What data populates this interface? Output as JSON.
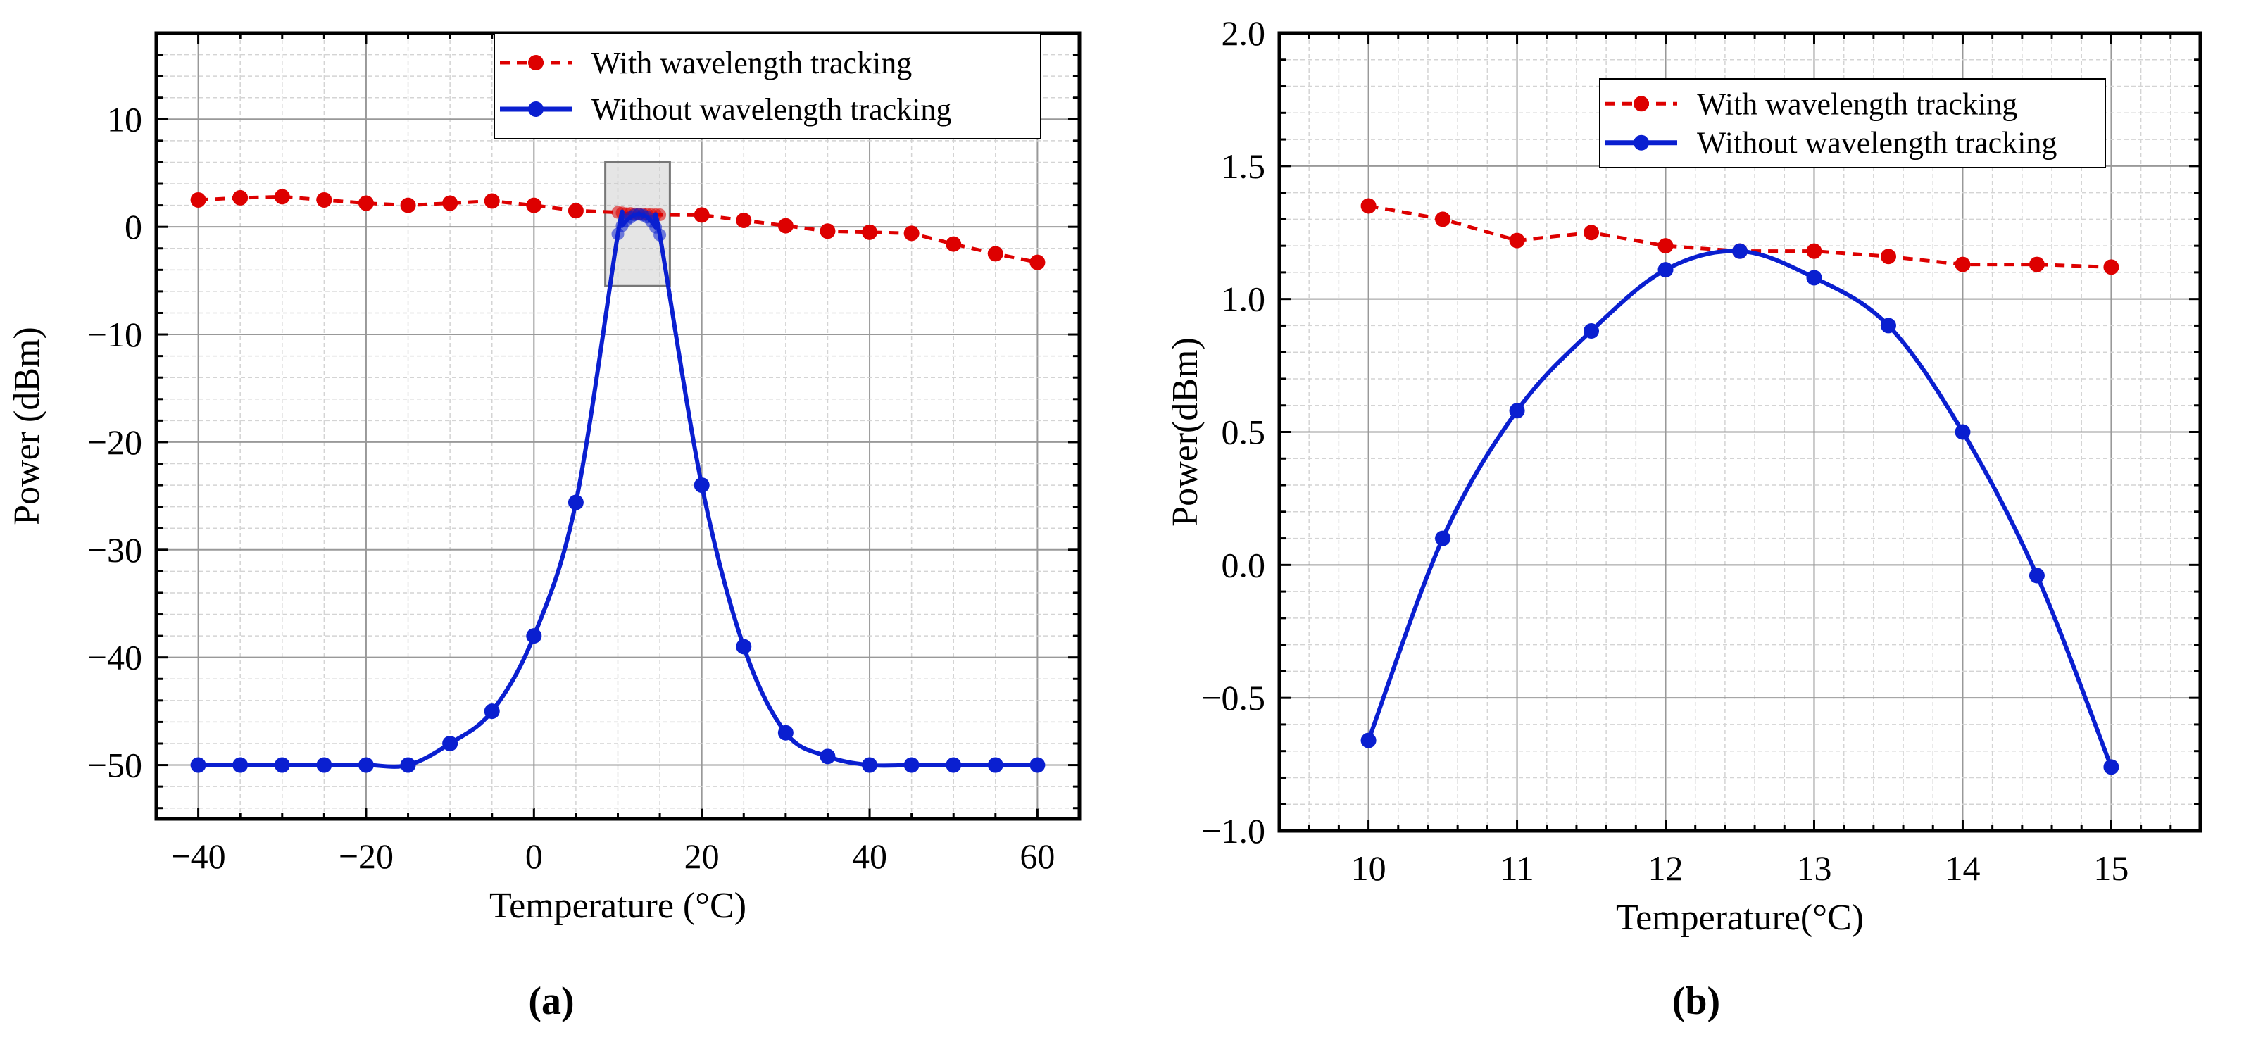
{
  "chart_data": [
    {
      "type": "line",
      "caption": "(a)",
      "xlabel": "Temperature (°C)",
      "ylabel": "Power (dBm)",
      "xlim": [
        -45,
        65
      ],
      "ylim": [
        -55,
        18
      ],
      "xticks": [
        -40,
        -20,
        0,
        20,
        40,
        60
      ],
      "xtick_labels": [
        "−40",
        "−20",
        "0",
        "20",
        "40",
        "60"
      ],
      "yticks": [
        -50,
        -40,
        -30,
        -20,
        -10,
        0,
        10
      ],
      "ytick_labels": [
        "−50",
        "−40",
        "−30",
        "−20",
        "−10",
        "0",
        "10"
      ],
      "xminor": 5,
      "yminor": 2,
      "xmajor": 20,
      "ymajor": 10,
      "grid": true,
      "legend_position": "top-right",
      "zoom_region": {
        "x": [
          8.5,
          16.2
        ],
        "y": [
          -5.5,
          6
        ]
      },
      "series": [
        {
          "name": "With wavelength tracking",
          "color": "#dd0000",
          "style": "dashed",
          "x": [
            -40,
            -35,
            -30,
            -25,
            -20,
            -15,
            -10,
            -5,
            0,
            5,
            10,
            10.5,
            11,
            11.5,
            12,
            12.5,
            13,
            13.5,
            14,
            14.5,
            15,
            20,
            25,
            30,
            35,
            40,
            45,
            50,
            55,
            60
          ],
          "y": [
            2.5,
            2.7,
            2.8,
            2.5,
            2.2,
            2.0,
            2.2,
            2.4,
            2.0,
            1.5,
            1.35,
            1.3,
            1.22,
            1.25,
            1.2,
            1.18,
            1.18,
            1.16,
            1.13,
            1.13,
            1.12,
            1.1,
            0.6,
            0.1,
            -0.4,
            -0.5,
            -0.6,
            -1.6,
            -2.5,
            -3.3
          ]
        },
        {
          "name": "Without wavelength  tracking",
          "color": "#0a1fd0",
          "style": "solid",
          "x": [
            -40,
            -35,
            -30,
            -25,
            -20,
            -15,
            -10,
            -5,
            0,
            5,
            10,
            10.5,
            11,
            11.5,
            12,
            12.5,
            13,
            13.5,
            14,
            14.5,
            15,
            20,
            25,
            30,
            35,
            40,
            45,
            50,
            55,
            60
          ],
          "y": [
            -50,
            -50,
            -50,
            -50,
            -50,
            -50,
            -48,
            -45,
            -38,
            -25.6,
            -0.66,
            0.1,
            0.58,
            0.88,
            1.11,
            1.18,
            1.08,
            0.9,
            0.5,
            -0.04,
            -0.76,
            -24,
            -39,
            -47,
            -49.2,
            -50,
            -50,
            -50,
            -50,
            -50
          ]
        }
      ]
    },
    {
      "type": "line",
      "caption": "(b)",
      "xlabel": "Temperature(°C)",
      "ylabel": "Power(dBm)",
      "xlim": [
        9.4,
        15.6
      ],
      "ylim": [
        -1.0,
        2.0
      ],
      "xticks": [
        10,
        11,
        12,
        13,
        14,
        15
      ],
      "xtick_labels": [
        "10",
        "11",
        "12",
        "13",
        "14",
        "15"
      ],
      "yticks": [
        -1.0,
        -0.5,
        0.0,
        0.5,
        1.0,
        1.5,
        2.0
      ],
      "ytick_labels": [
        "−1.0",
        "−0.5",
        "0.0",
        "0.5",
        "1.0",
        "1.5",
        "2.0"
      ],
      "xminor": 0.2,
      "yminor": 0.1,
      "xmajor": 1,
      "ymajor": 0.5,
      "grid": true,
      "legend_position": "top-right",
      "series": [
        {
          "name": "With wavelength tracking",
          "color": "#dd0000",
          "style": "dashed",
          "x": [
            10,
            10.5,
            11,
            11.5,
            12,
            12.5,
            13,
            13.5,
            14,
            14.5,
            15
          ],
          "y": [
            1.35,
            1.3,
            1.22,
            1.25,
            1.2,
            1.18,
            1.18,
            1.16,
            1.13,
            1.13,
            1.12
          ]
        },
        {
          "name": "Without wavelength tracking",
          "color": "#0a1fd0",
          "style": "solid",
          "x": [
            10,
            10.5,
            11,
            11.5,
            12,
            12.5,
            13,
            13.5,
            14,
            14.5,
            15
          ],
          "y": [
            -0.66,
            0.1,
            0.58,
            0.88,
            1.11,
            1.18,
            1.08,
            0.9,
            0.5,
            -0.04,
            -0.76
          ]
        }
      ]
    }
  ]
}
